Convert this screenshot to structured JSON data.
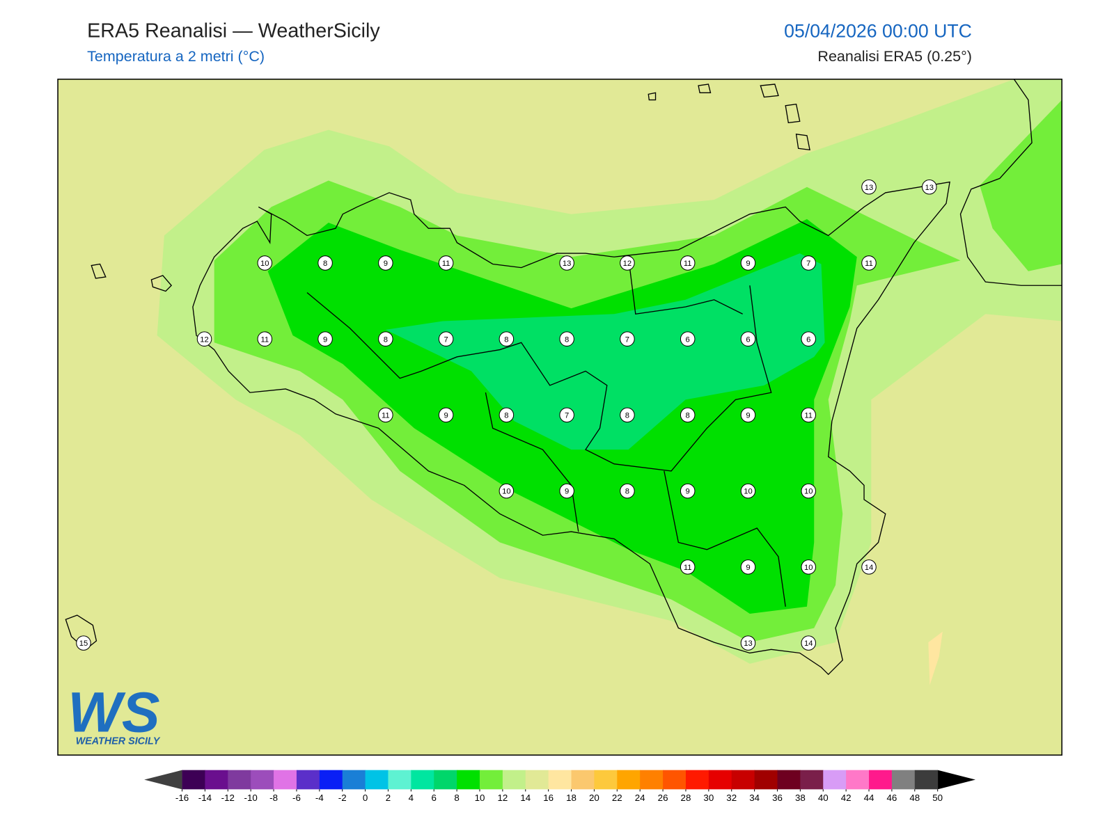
{
  "header": {
    "title": "ERA5 Reanalisi — WeatherSicily",
    "subtitle": "Temperatura a 2 metri (°C)",
    "date": "05/04/2026 00:00 UTC",
    "source": "Reanalisi ERA5 (0.25°)"
  },
  "stations": {
    "rows": [
      [
        null,
        null,
        null,
        null,
        null,
        null,
        null,
        null,
        null,
        null,
        null,
        null,
        null,
        13,
        13
      ],
      [
        null,
        null,
        null,
        10,
        8,
        9,
        11,
        null,
        13,
        12,
        11,
        9,
        7,
        11,
        null
      ],
      [
        null,
        null,
        12,
        11,
        9,
        8,
        7,
        8,
        8,
        7,
        6,
        6,
        6,
        null,
        null
      ],
      [
        null,
        null,
        null,
        null,
        null,
        11,
        9,
        8,
        7,
        8,
        8,
        9,
        11,
        null,
        null
      ],
      [
        null,
        null,
        null,
        null,
        null,
        null,
        null,
        10,
        9,
        8,
        9,
        10,
        10,
        null,
        null
      ],
      [
        null,
        null,
        null,
        null,
        null,
        null,
        null,
        null,
        null,
        null,
        11,
        9,
        10,
        14,
        null
      ],
      [
        15,
        null,
        null,
        null,
        null,
        null,
        null,
        null,
        null,
        null,
        null,
        13,
        14,
        null,
        null
      ]
    ]
  },
  "colorbar": {
    "ticks": [
      -16,
      -14,
      -12,
      -10,
      -8,
      -6,
      -4,
      -2,
      0,
      2,
      4,
      6,
      8,
      10,
      12,
      14,
      16,
      18,
      20,
      22,
      24,
      26,
      28,
      30,
      32,
      34,
      36,
      38,
      40,
      42,
      44,
      46,
      48,
      50
    ],
    "colors": [
      "#3d0055",
      "#6a0f8e",
      "#7f3a9e",
      "#9c4dbb",
      "#e073e6",
      "#5b2fc9",
      "#0a1ff5",
      "#1a7fd6",
      "#00c3e6",
      "#5ef2d2",
      "#00e6a0",
      "#00d66a",
      "#00e000",
      "#73ee3a",
      "#c2f08a",
      "#e1e996",
      "#ffe6a0",
      "#fbc86e",
      "#fdc93c",
      "#ffa500",
      "#ff8000",
      "#ff5500",
      "#ff1a00",
      "#e60000",
      "#c80000",
      "#a00000",
      "#6e0020",
      "#7a1f4a",
      "#d89cf6",
      "#ff78c8",
      "#ff1a8c",
      "#808080",
      "#3c3c3c"
    ],
    "under_color": "#404040",
    "over_color": "#000000"
  },
  "logo": {
    "mark": "WS",
    "name": "WEATHER SICILY"
  }
}
